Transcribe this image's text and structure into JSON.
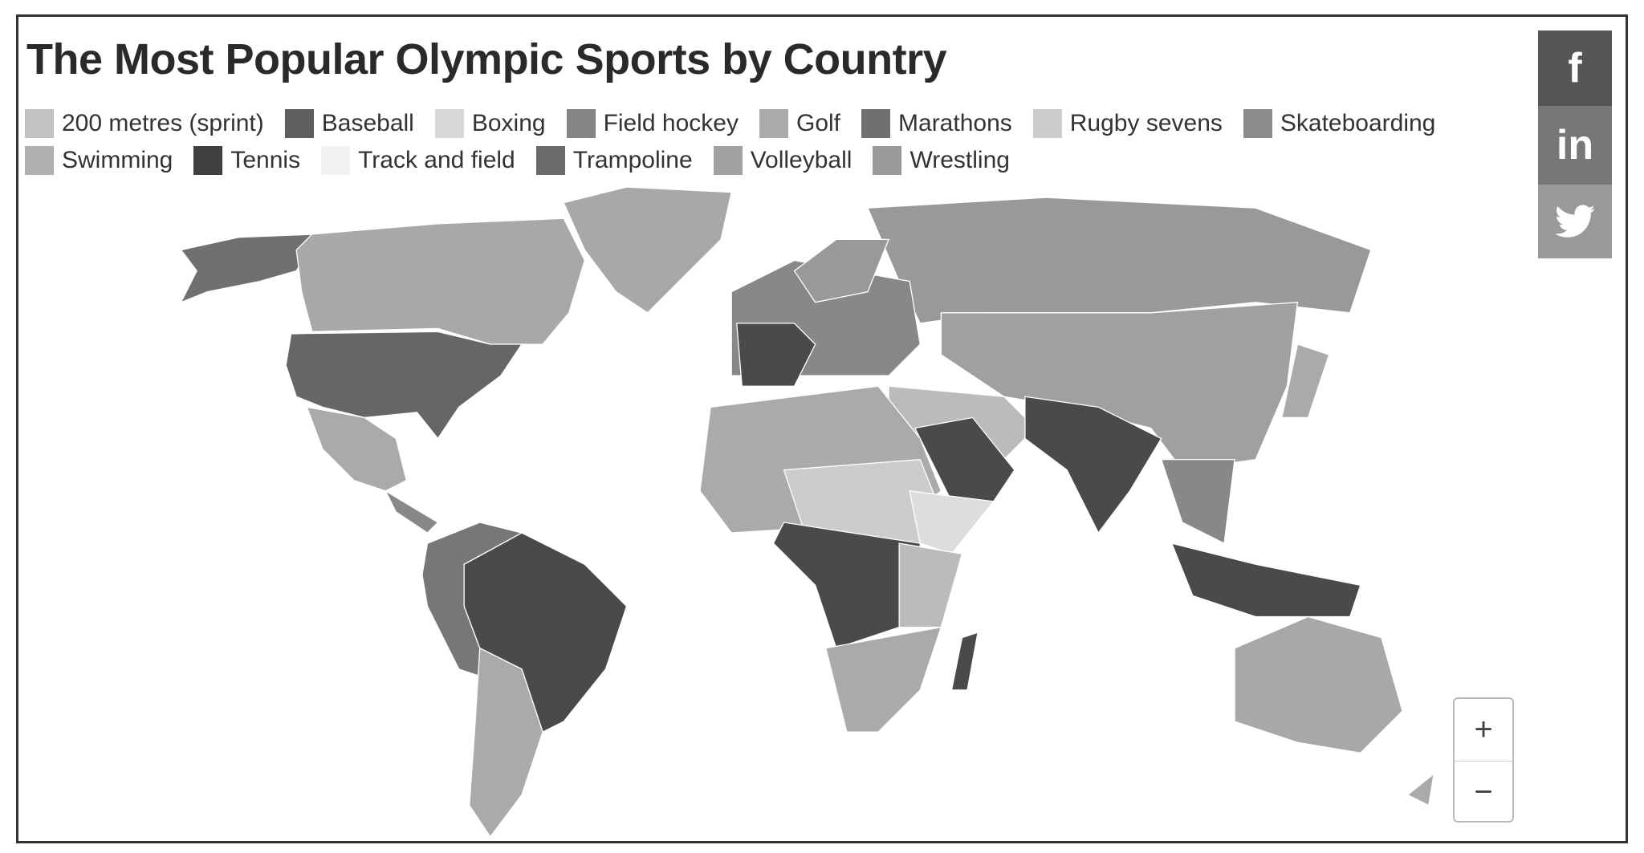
{
  "header": {
    "title": "The Most Popular Olympic Sports by Country"
  },
  "legend": [
    {
      "label": "200 metres (sprint)",
      "color": "#c2c2c2"
    },
    {
      "label": "Baseball",
      "color": "#5e5e5e"
    },
    {
      "label": "Boxing",
      "color": "#d8d8d8"
    },
    {
      "label": "Field hockey",
      "color": "#848484"
    },
    {
      "label": "Golf",
      "color": "#ababab"
    },
    {
      "label": "Marathons",
      "color": "#707070"
    },
    {
      "label": "Rugby sevens",
      "color": "#cccccc"
    },
    {
      "label": "Skateboarding",
      "color": "#8c8c8c"
    },
    {
      "label": "Swimming",
      "color": "#b0b0b0"
    },
    {
      "label": "Tennis",
      "color": "#3f3f3f"
    },
    {
      "label": "Track and field",
      "color": "#f2f2f2"
    },
    {
      "label": "Trampoline",
      "color": "#6a6a6a"
    },
    {
      "label": "Volleyball",
      "color": "#a0a0a0"
    },
    {
      "label": "Wrestling",
      "color": "#999999"
    }
  ],
  "social": {
    "facebook": "f",
    "linkedin": "in"
  },
  "zoom": {
    "in": "+",
    "out": "−"
  }
}
